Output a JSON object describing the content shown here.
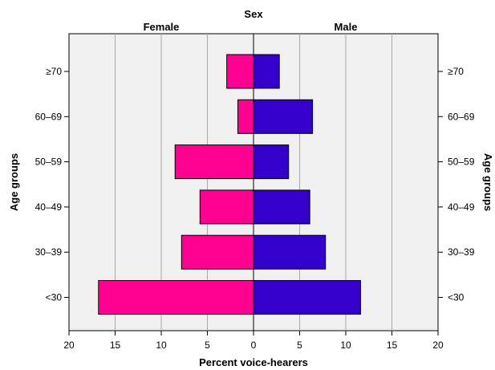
{
  "chart_data": {
    "type": "bar",
    "subtype": "population-pyramid",
    "title": "Sex",
    "xlabel": "Percent voice-hearers",
    "ylabel": "Age groups",
    "xlim": [
      -20,
      20
    ],
    "x_ticks": [
      -20,
      -15,
      -10,
      -5,
      0,
      5,
      10,
      15,
      20
    ],
    "x_tick_labels": [
      "20",
      "15",
      "10",
      "5",
      "0",
      "5",
      "10",
      "15",
      "20"
    ],
    "grid": true,
    "categories": [
      "≥70",
      "60–69",
      "50–59",
      "40–49",
      "30–39",
      "<30"
    ],
    "series": [
      {
        "name": "Female",
        "color": "#ff0090",
        "values": [
          2.9,
          1.7,
          8.5,
          5.8,
          7.8,
          16.8
        ]
      },
      {
        "name": "Male",
        "color": "#3300cc",
        "values": [
          2.8,
          6.4,
          3.8,
          6.1,
          7.8,
          11.6
        ]
      }
    ]
  }
}
